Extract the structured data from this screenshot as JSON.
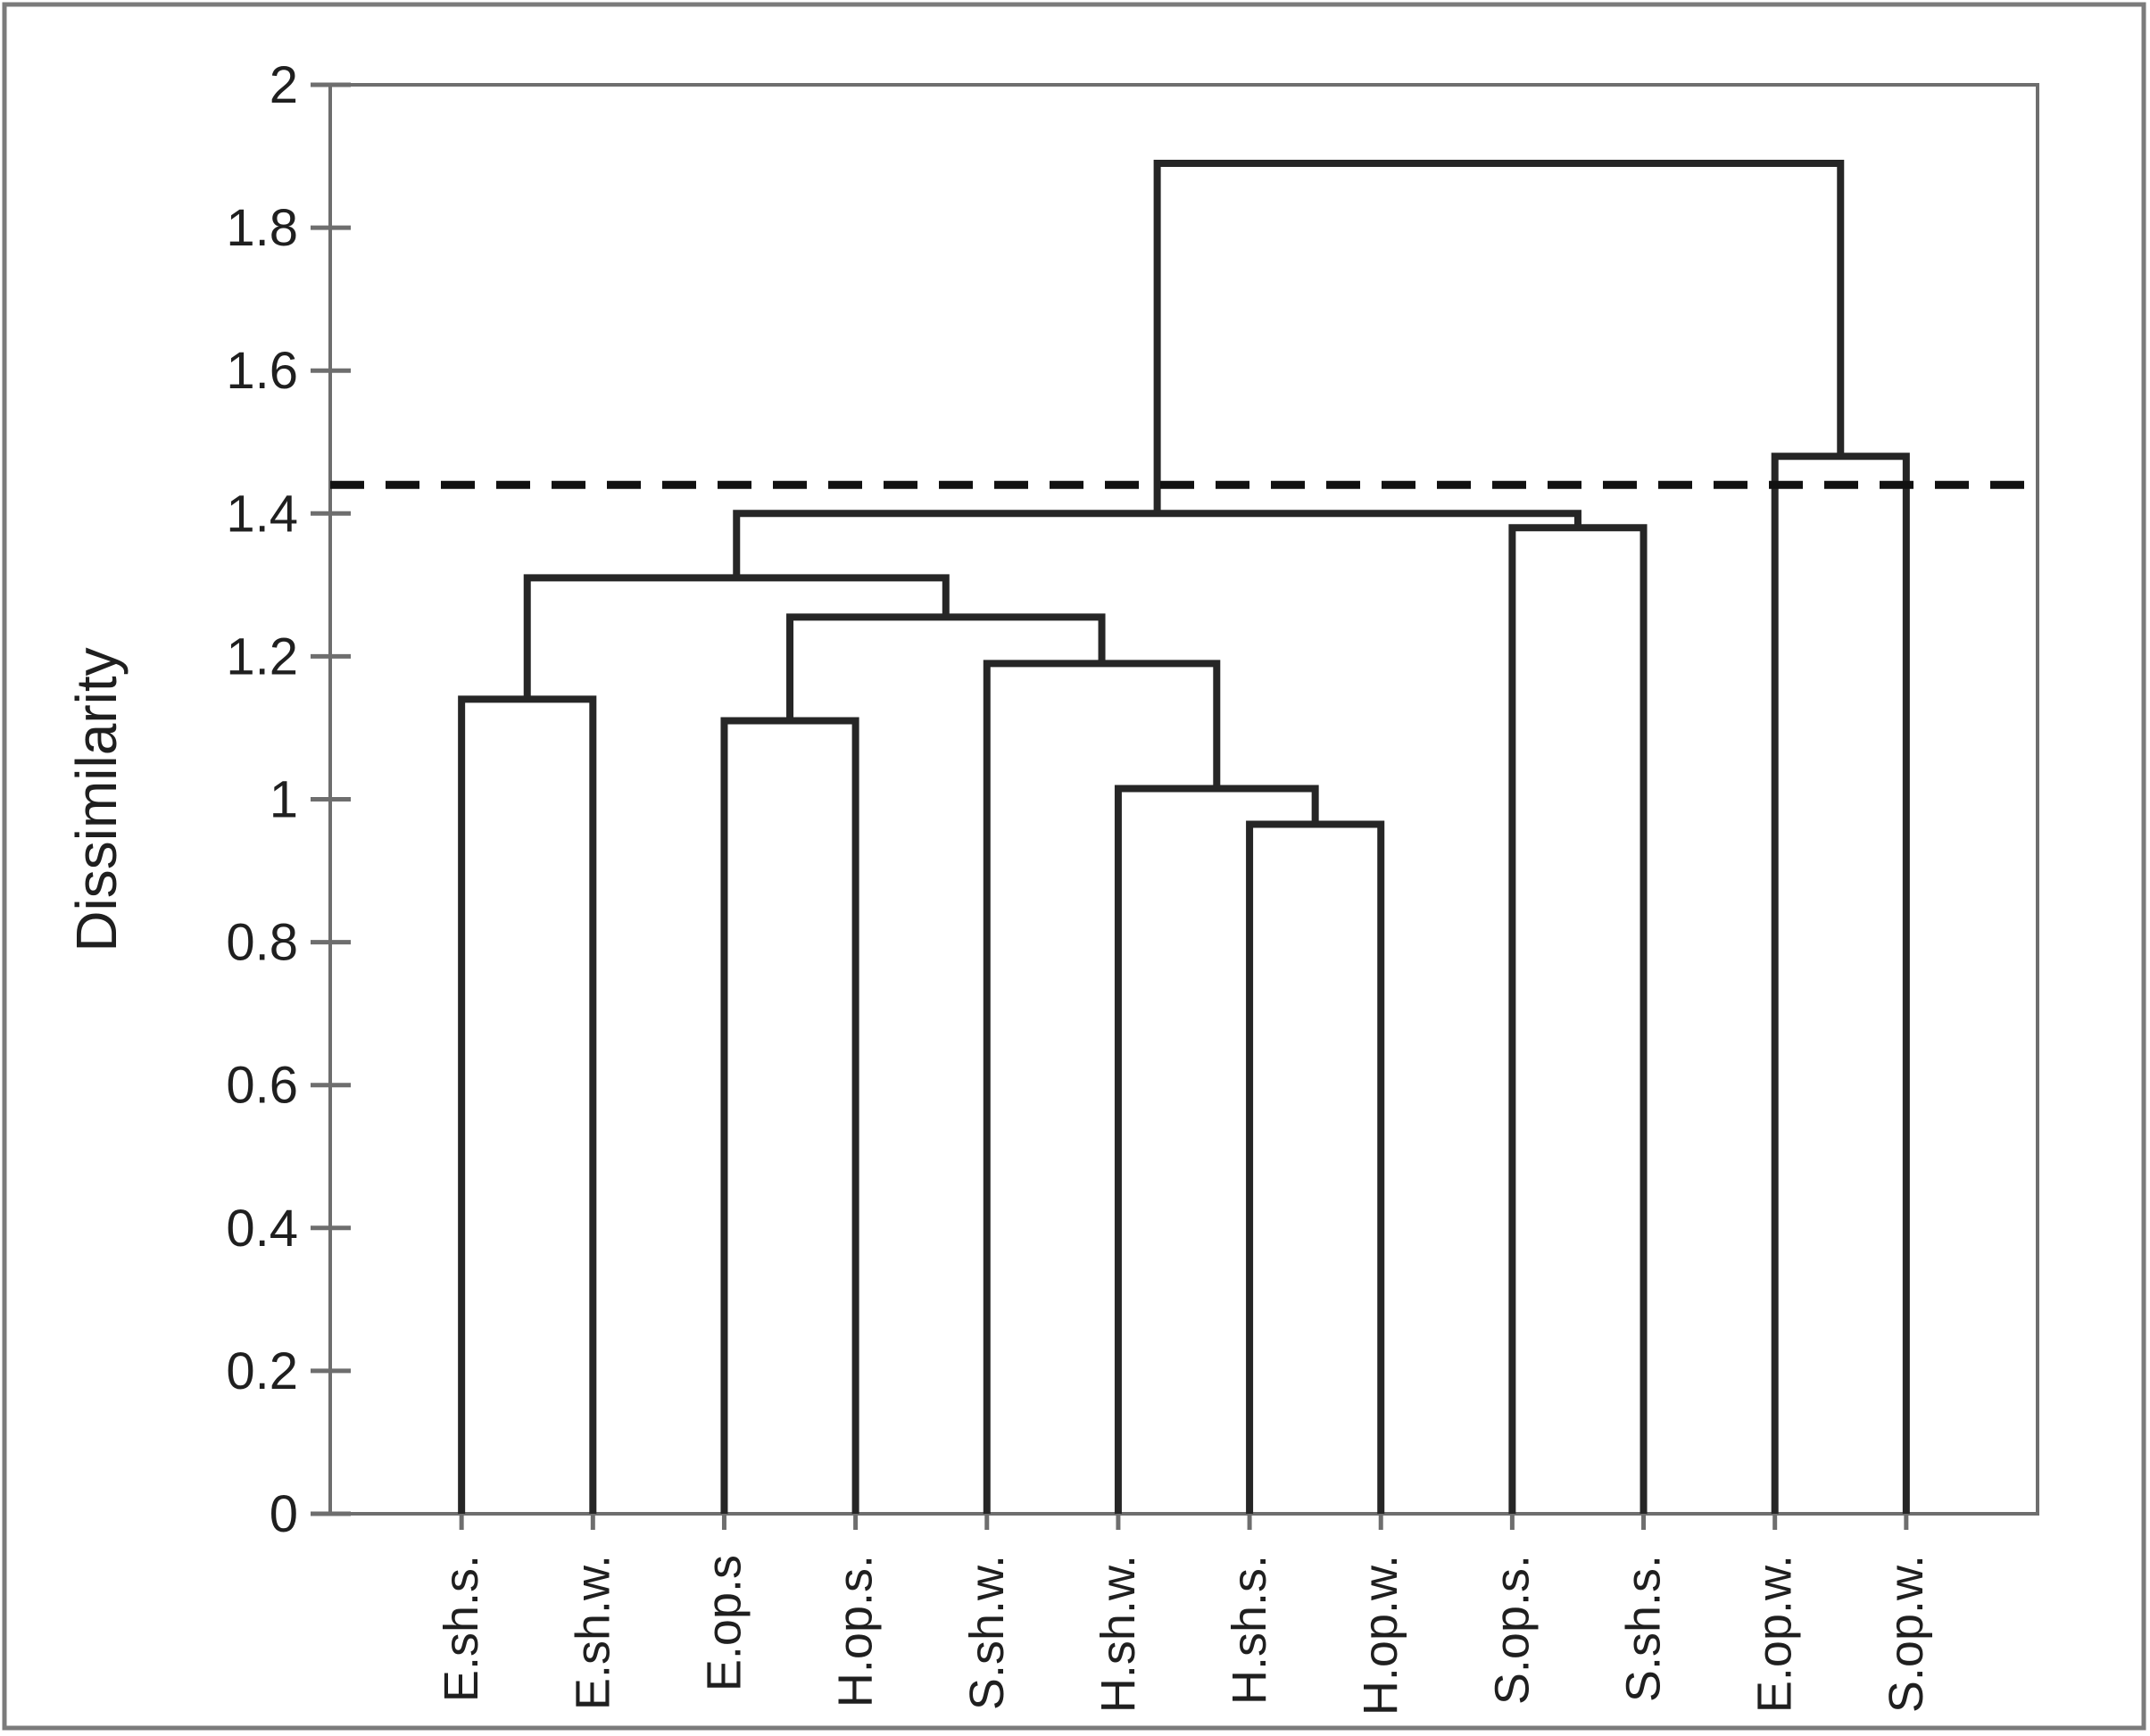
{
  "chart_data": {
    "type": "dendrogram",
    "title": "",
    "ylabel": "Dissimilarity",
    "ylim": [
      0,
      2
    ],
    "ytick_step": 0.2,
    "ytick_labels": [
      "0",
      "0.2",
      "0.4",
      "0.6",
      "0.8",
      "1",
      "1.2",
      "1.4",
      "1.6",
      "1.8",
      "2"
    ],
    "grid": "off",
    "legend": "none",
    "categories": [
      "E.sh.s.",
      "E.sh.w.",
      "E.op.s",
      "H.op.s.",
      "S.sh.w.",
      "H.sh.w.",
      "H.sh.s.",
      "H.op.w.",
      "S.op.s.",
      "S.sh.s.",
      "E.op.w.",
      "S.op.w."
    ],
    "merges": [
      {
        "id": "C",
        "left": "H.sh.s.",
        "right": "H.op.w.",
        "height": 0.965
      },
      {
        "id": "D",
        "left": "H.sh.w.",
        "right": "C",
        "height": 1.015
      },
      {
        "id": "B",
        "left": "E.op.s",
        "right": "H.op.s.",
        "height": 1.11
      },
      {
        "id": "A",
        "left": "E.sh.s.",
        "right": "E.sh.w.",
        "height": 1.14
      },
      {
        "id": "E",
        "left": "S.sh.w.",
        "right": "D",
        "height": 1.19
      },
      {
        "id": "F",
        "left": "B",
        "right": "E",
        "height": 1.255
      },
      {
        "id": "G",
        "left": "A",
        "right": "F",
        "height": 1.31
      },
      {
        "id": "H",
        "left": "S.op.s.",
        "right": "S.sh.s.",
        "height": 1.38
      },
      {
        "id": "I",
        "left": "G",
        "right": "H",
        "height": 1.4
      },
      {
        "id": "J",
        "left": "E.op.w.",
        "right": "S.op.w.",
        "height": 1.48
      },
      {
        "id": "K",
        "left": "I",
        "right": "J",
        "height": 1.89
      }
    ],
    "cut_line": {
      "value": 1.44,
      "style": "dashed"
    },
    "colors": {
      "link": "#262626",
      "cut_line": "#111111",
      "axis": "#6e6e6e",
      "figure_border": "#7b7b7b",
      "text": "#1f1f1f",
      "background": "#ffffff"
    }
  }
}
